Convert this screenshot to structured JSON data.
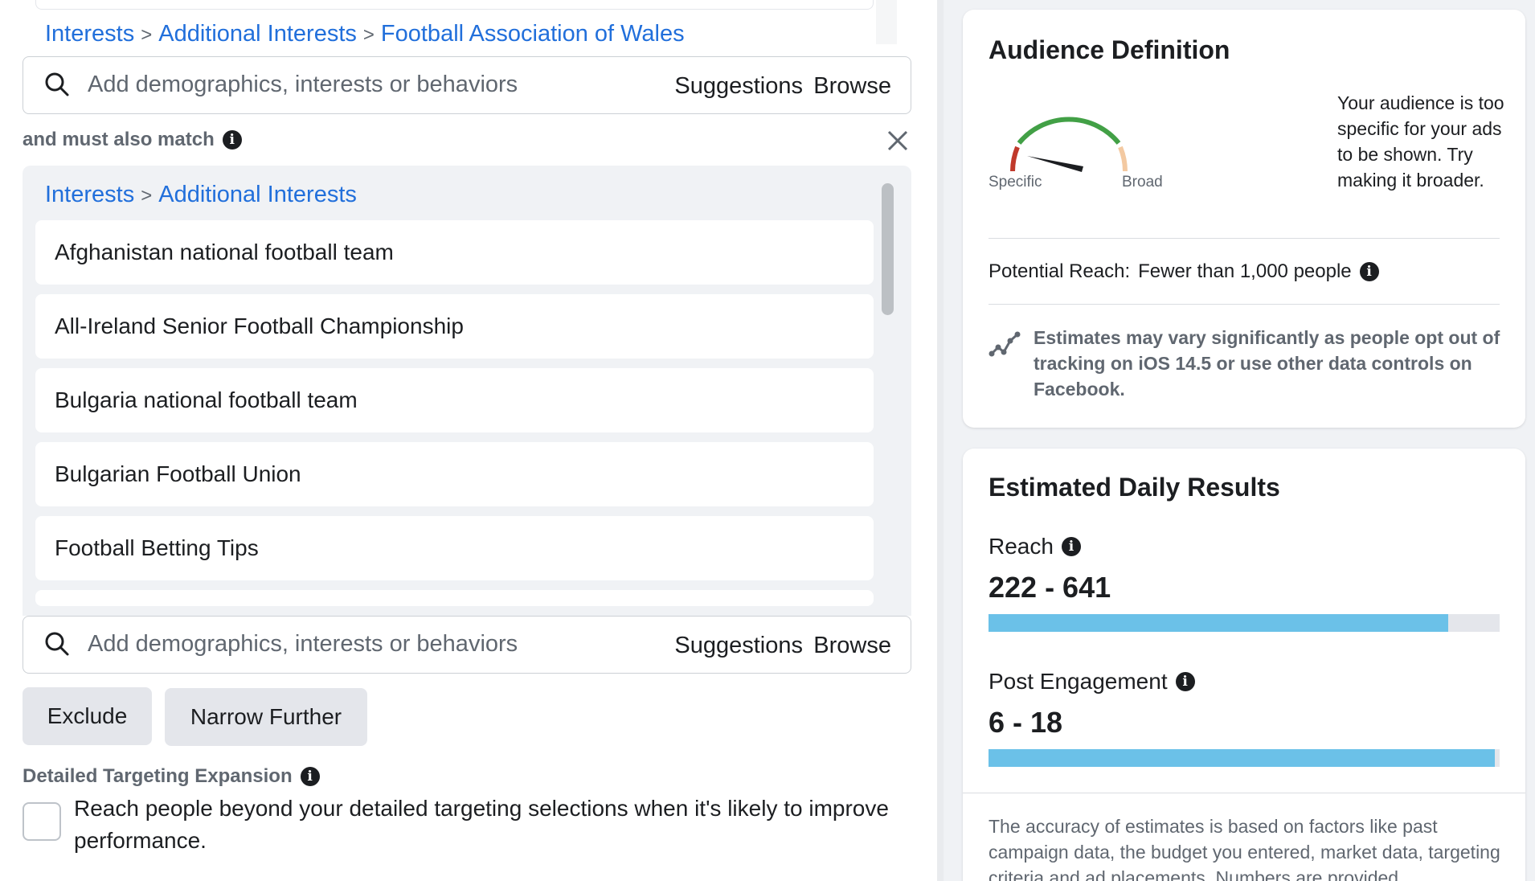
{
  "targeting": {
    "top_breadcrumb": [
      "Interests",
      "Additional Interests",
      "Football Association of Wales"
    ],
    "breadcrumb_separator": ">",
    "search_placeholder": "Add demographics, interests or behaviors",
    "suggestions_label": "Suggestions",
    "browse_label": "Browse",
    "must_match_label": "and must also match",
    "group_breadcrumb": [
      "Interests",
      "Additional Interests"
    ],
    "items": [
      "Afghanistan national football team",
      "All-Ireland Senior Football Championship",
      "Bulgaria national football team",
      "Bulgarian Football Union",
      "Football Betting Tips"
    ],
    "exclude_label": "Exclude",
    "narrow_label": "Narrow Further",
    "dte_label": "Detailed Targeting Expansion",
    "dte_text": "Reach people beyond your detailed targeting selections when it's likely to improve performance.",
    "dte_checked": false
  },
  "audience": {
    "title": "Audience Definition",
    "gauge_specific": "Specific",
    "gauge_broad": "Broad",
    "note": "Your audience is too specific for your ads to be shown. Try making it broader.",
    "potential_reach_label": "Potential Reach:",
    "potential_reach_value": "Fewer than 1,000 people",
    "estimate_note": "Estimates may vary significantly as people opt out of tracking on iOS 14.5 or use other data controls on Facebook."
  },
  "results": {
    "title": "Estimated Daily Results",
    "reach_label": "Reach",
    "reach_value": "222 - 641",
    "reach_fill_pct": 90,
    "engagement_label": "Post Engagement",
    "engagement_value": "6 - 18",
    "engagement_fill_pct": 99,
    "accuracy_note": "The accuracy of estimates is based on factors like past campaign data, the budget you entered, market data, targeting criteria and ad placements. Numbers are provided"
  },
  "colors": {
    "link": "#216fdb",
    "gauge_red": "#c0392b",
    "gauge_green": "#42a046",
    "gauge_peach": "#f3c9a1",
    "bar_fill": "#6bc1e8"
  },
  "icons": [
    "search-icon",
    "info-icon",
    "close-icon",
    "trend-icon"
  ]
}
